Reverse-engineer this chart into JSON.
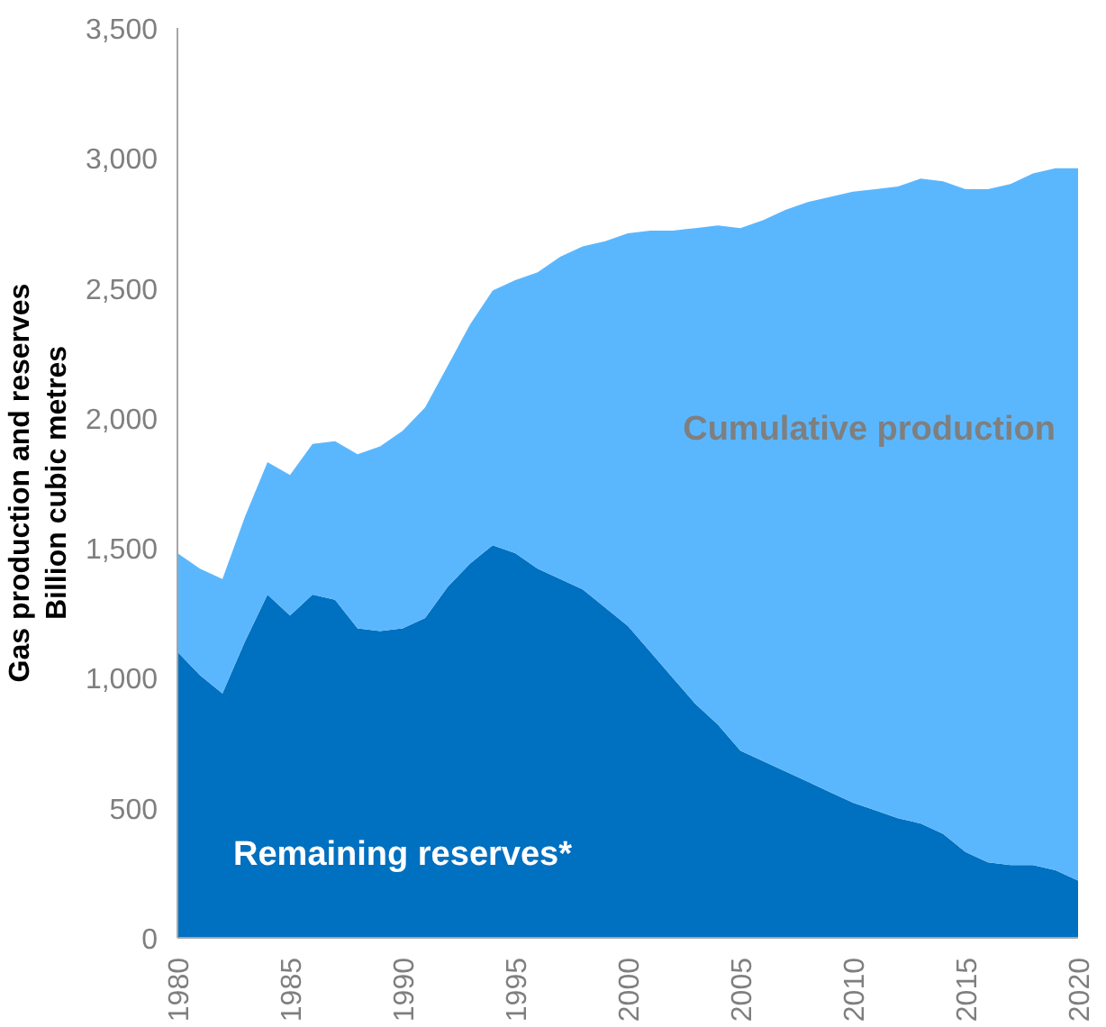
{
  "chart_data": {
    "type": "area",
    "stacked": true,
    "ylabel": "Gas production and reserves\nBillion cubic metres",
    "x": [
      1980,
      1981,
      1982,
      1983,
      1984,
      1985,
      1986,
      1987,
      1988,
      1989,
      1990,
      1991,
      1992,
      1993,
      1994,
      1995,
      1996,
      1997,
      1998,
      1999,
      2000,
      2001,
      2002,
      2003,
      2004,
      2005,
      2006,
      2007,
      2008,
      2009,
      2010,
      2011,
      2012,
      2013,
      2014,
      2015,
      2016,
      2017,
      2018,
      2019,
      2020
    ],
    "series": [
      {
        "name": "Remaining reserves*",
        "color": "#0070c0",
        "values": [
          1100,
          1010,
          940,
          1140,
          1320,
          1240,
          1320,
          1300,
          1190,
          1180,
          1190,
          1230,
          1350,
          1440,
          1510,
          1480,
          1420,
          1380,
          1340,
          1270,
          1200,
          1100,
          1000,
          900,
          820,
          720,
          680,
          640,
          600,
          560,
          520,
          490,
          460,
          440,
          400,
          330,
          290,
          280,
          280,
          260,
          220
        ]
      },
      {
        "name": "Cumulative production",
        "color": "#5bb7fd",
        "values": [
          380,
          410,
          440,
          480,
          510,
          540,
          580,
          610,
          670,
          710,
          760,
          810,
          850,
          920,
          980,
          1050,
          1140,
          1240,
          1320,
          1410,
          1510,
          1620,
          1720,
          1830,
          1920,
          2010,
          2080,
          2160,
          2230,
          2290,
          2350,
          2390,
          2430,
          2480,
          2510,
          2550,
          2590,
          2620,
          2660,
          2700,
          2740
        ]
      }
    ],
    "xlim": [
      1980,
      2020
    ],
    "xticks": [
      1980,
      1985,
      1990,
      1995,
      2000,
      2005,
      2010,
      2015,
      2020
    ],
    "ylim": [
      0,
      3500
    ],
    "yticks": [
      0,
      {
        "value": 500,
        "label": "500"
      },
      {
        "value": 1000,
        "label": "1,000"
      },
      {
        "value": 1500,
        "label": "1,500"
      },
      {
        "value": 2000,
        "label": "2,000"
      },
      {
        "value": 2500,
        "label": "2,500"
      },
      {
        "value": 3000,
        "label": "3,000"
      },
      {
        "value": 3500,
        "label": "3,500"
      }
    ],
    "grid": false
  }
}
